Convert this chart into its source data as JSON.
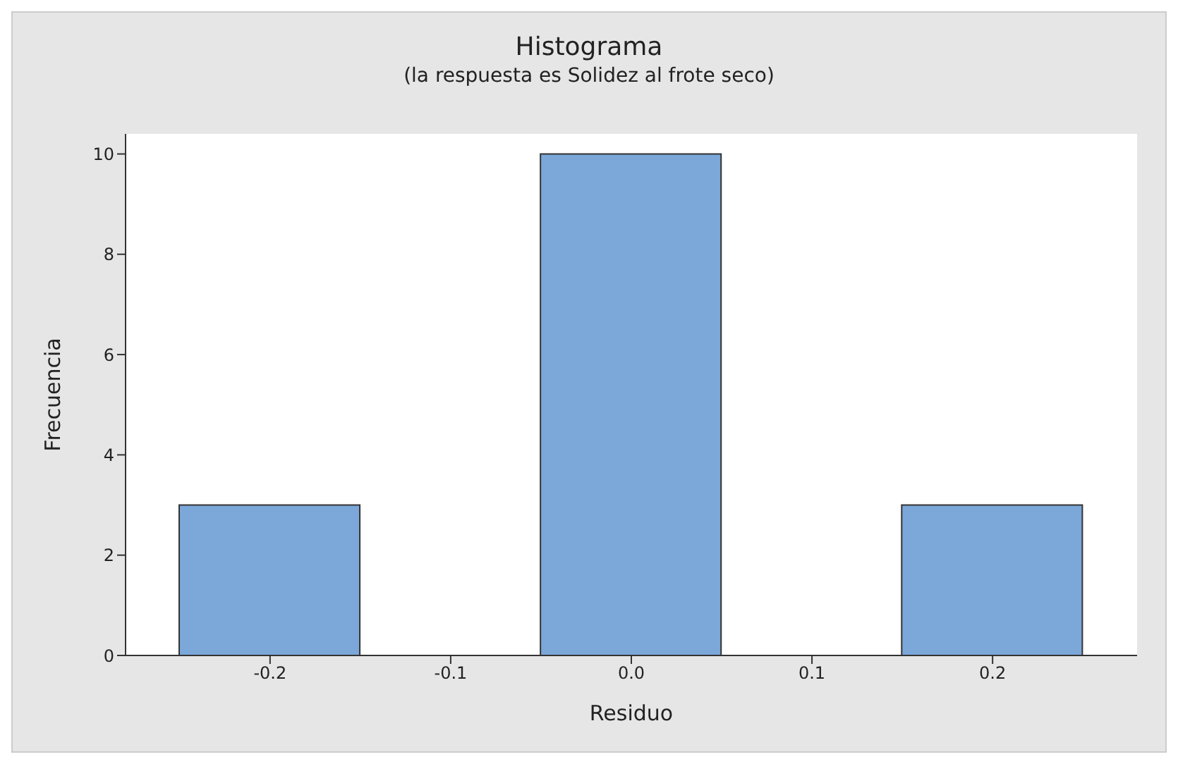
{
  "chart_data": {
    "type": "histogram",
    "title": "Histograma",
    "subtitle": "(la respuesta es Solidez al frote seco)",
    "xlabel": "Residuo",
    "ylabel": "Frecuencia",
    "bins": [
      -0.25,
      -0.15,
      -0.05,
      0.05,
      0.15,
      0.25
    ],
    "values": [
      3,
      0,
      10,
      0,
      3
    ],
    "color": "#7ba7d9",
    "xlim": [
      -0.28,
      0.28
    ],
    "xticks": [
      -0.2,
      -0.1,
      {
        "value": 0,
        "label": "0.0"
      },
      0.1,
      0.2
    ],
    "ylim": [
      0,
      10.4
    ],
    "yticks": [
      0,
      2,
      4,
      6,
      8,
      10
    ],
    "grid": false,
    "legend": false
  }
}
